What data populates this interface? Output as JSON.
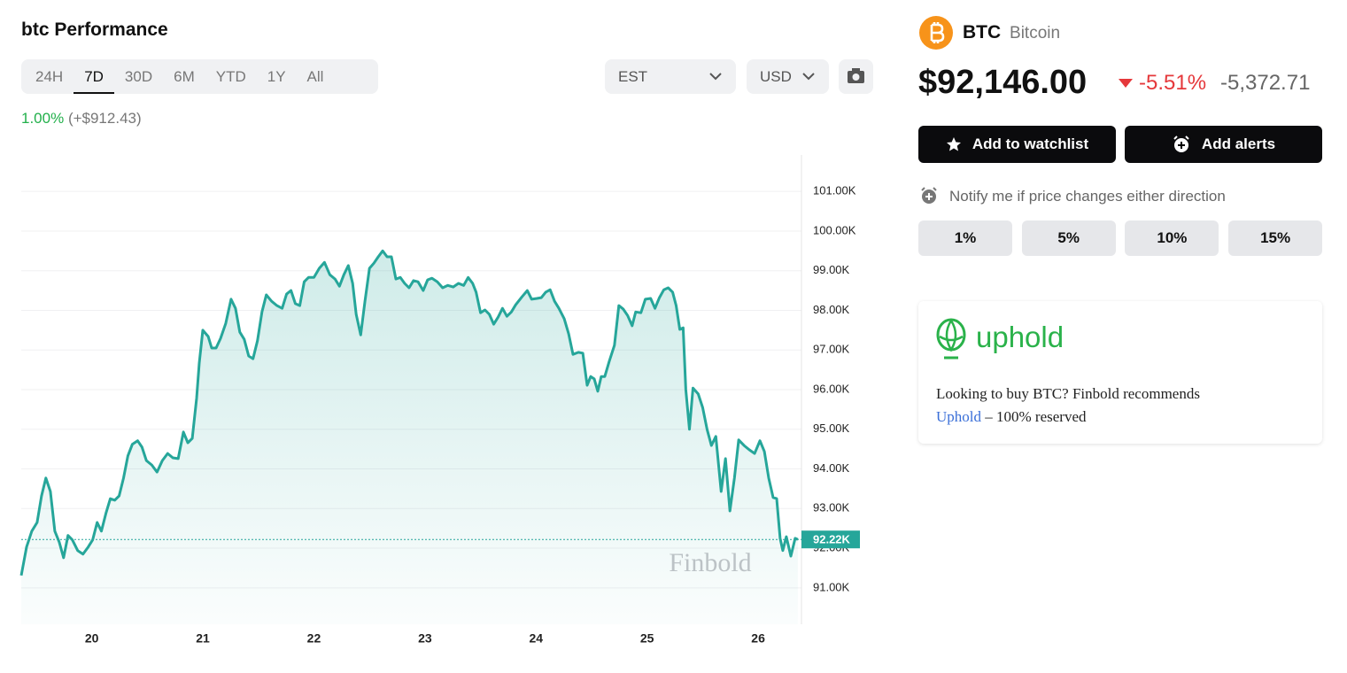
{
  "header": {
    "title": "btc Performance",
    "ranges": [
      "24H",
      "7D",
      "30D",
      "6M",
      "YTD",
      "1Y",
      "All"
    ],
    "active_range": 1,
    "change_pct": "1.00%",
    "change_abs": "(+$912.43)",
    "timezone": "EST",
    "currency": "USD"
  },
  "chart_data": {
    "type": "line",
    "color": "#26a69a",
    "watermark": "Finbold",
    "grid": true,
    "xlim": [
      19.365,
      26.39
    ],
    "xticks": [
      20,
      21,
      22,
      23,
      24,
      25,
      26
    ],
    "ylim": [
      90.08,
      101.92
    ],
    "yticks": [
      {
        "value": 91,
        "label": "91.00K"
      },
      {
        "value": 92,
        "label": "92.00K"
      },
      {
        "value": 93,
        "label": "93.00K"
      },
      {
        "value": 94,
        "label": "94.00K"
      },
      {
        "value": 95,
        "label": "95.00K"
      },
      {
        "value": 96,
        "label": "96.00K"
      },
      {
        "value": 97,
        "label": "97.00K"
      },
      {
        "value": 98,
        "label": "98.00K"
      },
      {
        "value": 99,
        "label": "99.00K"
      },
      {
        "value": 100,
        "label": "100.00K"
      },
      {
        "value": 101,
        "label": "101.00K"
      }
    ],
    "last_price": {
      "value": 92.22,
      "label": "92.22K"
    },
    "x": [
      19.365,
      19.413,
      19.46,
      19.508,
      19.548,
      19.587,
      19.627,
      19.667,
      19.706,
      19.746,
      19.786,
      19.825,
      19.873,
      19.921,
      19.968,
      20.008,
      20.048,
      20.087,
      20.127,
      20.167,
      20.206,
      20.246,
      20.286,
      20.325,
      20.365,
      20.413,
      20.452,
      20.492,
      20.54,
      20.587,
      20.635,
      20.683,
      20.73,
      20.778,
      20.825,
      20.865,
      20.905,
      20.944,
      20.968,
      21.0,
      21.048,
      21.079,
      21.119,
      21.159,
      21.206,
      21.254,
      21.294,
      21.333,
      21.373,
      21.413,
      21.452,
      21.492,
      21.532,
      21.571,
      21.619,
      21.667,
      21.714,
      21.754,
      21.794,
      21.833,
      21.873,
      21.913,
      21.952,
      22.0,
      22.048,
      22.095,
      22.143,
      22.19,
      22.23,
      22.27,
      22.31,
      22.349,
      22.381,
      22.421,
      22.46,
      22.5,
      22.54,
      22.579,
      22.619,
      22.659,
      22.698,
      22.738,
      22.778,
      22.817,
      22.857,
      22.897,
      22.937,
      22.984,
      23.024,
      23.063,
      23.111,
      23.159,
      23.206,
      23.254,
      23.302,
      23.349,
      23.389,
      23.429,
      23.46,
      23.5,
      23.54,
      23.579,
      23.619,
      23.659,
      23.698,
      23.738,
      23.778,
      23.817,
      23.873,
      23.921,
      23.96,
      24.008,
      24.048,
      24.087,
      24.127,
      24.167,
      24.206,
      24.254,
      24.294,
      24.333,
      24.381,
      24.421,
      24.46,
      24.492,
      24.524,
      24.556,
      24.587,
      24.619,
      24.659,
      24.706,
      24.746,
      24.786,
      24.825,
      24.865,
      24.897,
      24.944,
      24.984,
      25.032,
      25.071,
      25.111,
      25.151,
      25.19,
      25.23,
      25.262,
      25.294,
      25.325,
      25.349,
      25.381,
      25.413,
      25.46,
      25.5,
      25.54,
      25.579,
      25.619,
      25.667,
      25.706,
      25.746,
      25.786,
      25.825,
      25.873,
      25.921,
      25.968,
      26.016,
      26.056,
      26.095,
      26.135,
      26.167,
      26.198,
      26.222,
      26.254,
      26.294,
      26.333,
      26.357
    ],
    "values": [
      91.31,
      92.03,
      92.43,
      92.65,
      93.32,
      93.77,
      93.43,
      92.43,
      92.16,
      91.76,
      92.32,
      92.21,
      91.94,
      91.85,
      92.03,
      92.21,
      92.65,
      92.43,
      92.88,
      93.25,
      93.21,
      93.32,
      93.77,
      94.33,
      94.62,
      94.71,
      94.55,
      94.21,
      94.1,
      93.92,
      94.21,
      94.39,
      94.28,
      94.26,
      94.93,
      94.66,
      94.77,
      95.78,
      96.67,
      97.5,
      97.34,
      97.05,
      97.05,
      97.29,
      97.67,
      98.28,
      98.05,
      97.45,
      97.27,
      96.85,
      96.78,
      97.23,
      97.96,
      98.39,
      98.23,
      98.12,
      98.05,
      98.41,
      98.5,
      98.17,
      98.12,
      98.72,
      98.83,
      98.83,
      99.06,
      99.21,
      98.9,
      98.79,
      98.61,
      98.9,
      99.13,
      98.68,
      97.9,
      97.38,
      98.23,
      99.06,
      99.19,
      99.35,
      99.5,
      99.35,
      99.35,
      98.79,
      98.83,
      98.68,
      98.57,
      98.75,
      98.72,
      98.5,
      98.77,
      98.81,
      98.72,
      98.57,
      98.63,
      98.59,
      98.68,
      98.63,
      98.83,
      98.68,
      98.46,
      97.94,
      98.01,
      97.9,
      97.65,
      97.83,
      98.05,
      97.85,
      97.96,
      98.14,
      98.34,
      98.5,
      98.28,
      98.3,
      98.32,
      98.46,
      98.52,
      98.23,
      98.05,
      97.79,
      97.41,
      96.89,
      96.94,
      96.92,
      96.11,
      96.33,
      96.27,
      95.96,
      96.33,
      96.33,
      96.71,
      97.12,
      98.12,
      98.03,
      97.87,
      97.61,
      97.96,
      97.94,
      98.28,
      98.3,
      98.05,
      98.32,
      98.52,
      98.57,
      98.46,
      98.12,
      97.52,
      97.56,
      96.0,
      95.0,
      96.04,
      95.89,
      95.55,
      95.0,
      94.59,
      94.82,
      93.43,
      94.26,
      92.94,
      93.77,
      94.73,
      94.59,
      94.48,
      94.39,
      94.71,
      94.44,
      93.77,
      93.28,
      93.25,
      92.25,
      91.94,
      92.29,
      91.8,
      92.25,
      92.22
    ]
  },
  "quote": {
    "symbol": "BTC",
    "name": "Bitcoin",
    "price": "$92,146.00",
    "change_pct": "-5.51%",
    "change_abs": "-5,372.71",
    "watchlist": "Add to watchlist",
    "alerts": "Add alerts",
    "notify": "Notify me if price changes either direction",
    "thresholds": [
      "1%",
      "5%",
      "10%",
      "15%"
    ]
  },
  "ad": {
    "brand": "uphold",
    "text": "Looking to buy BTC? Finbold recommends",
    "link": "Uphold",
    "suffix": "– 100% reserved"
  }
}
